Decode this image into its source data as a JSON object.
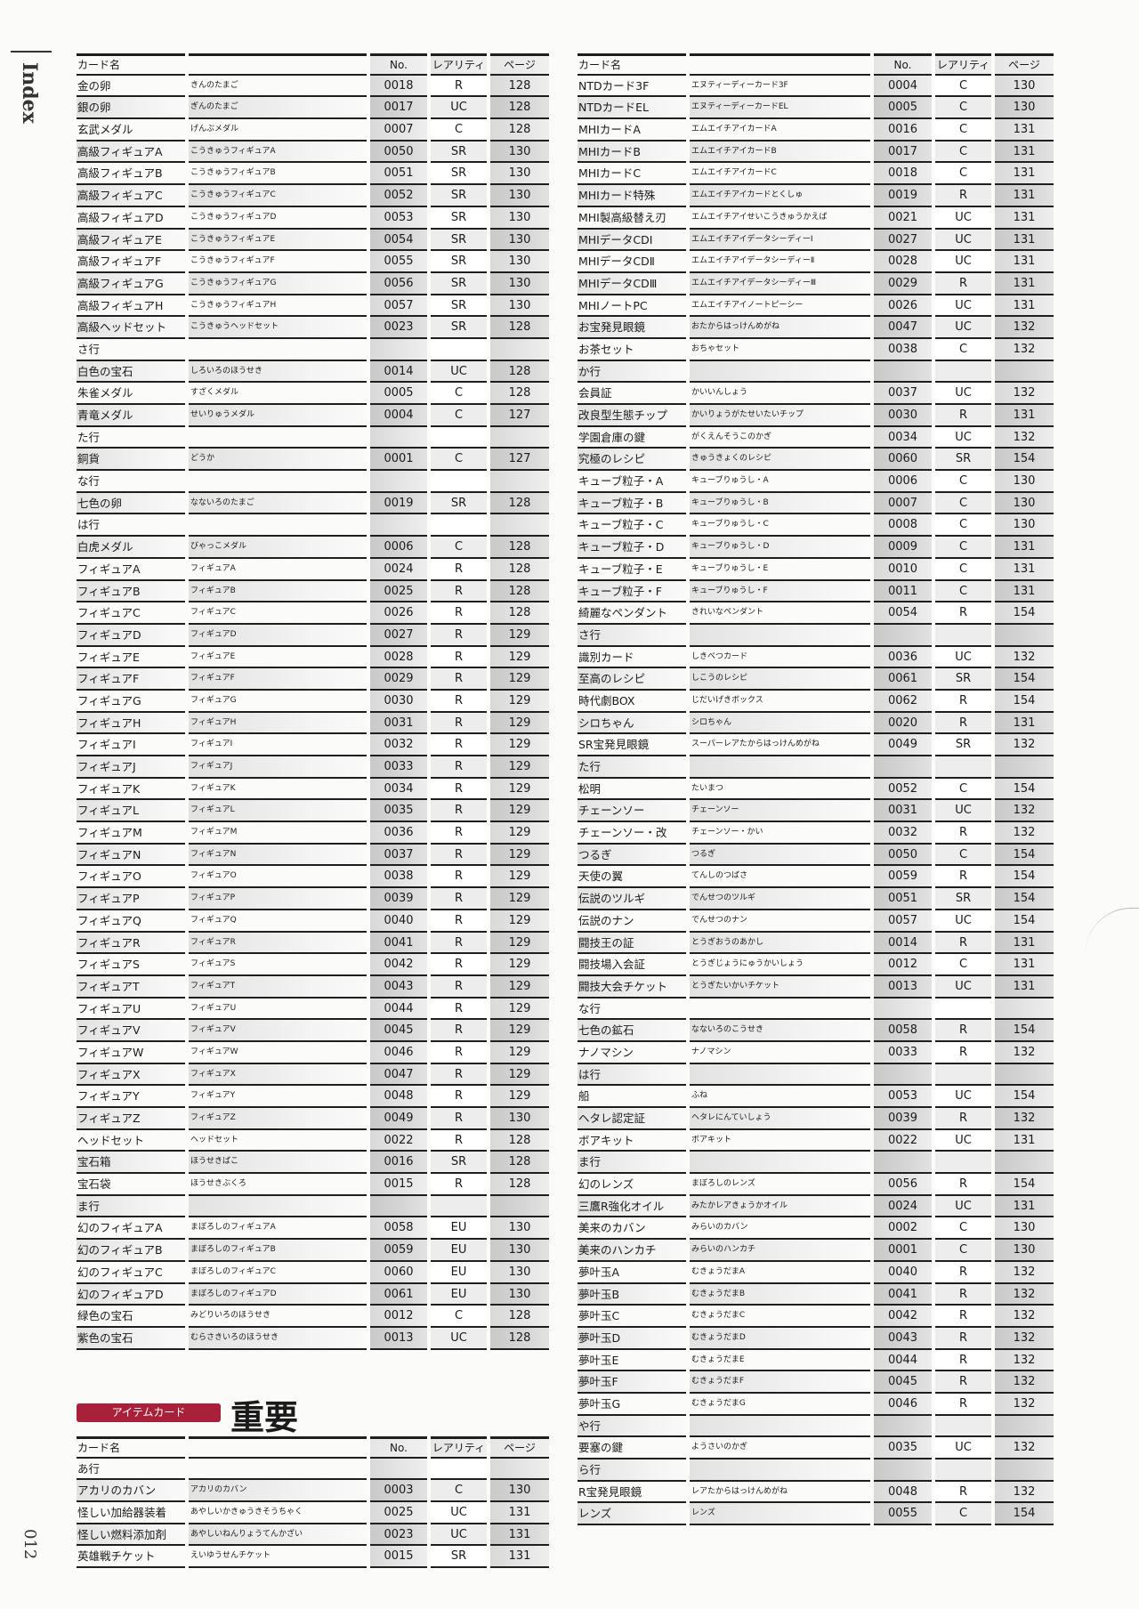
{
  "side": {
    "index_label": "Index",
    "page_number": "012"
  },
  "headers": {
    "name": "カード名",
    "no": "No.",
    "rarity": "レアリティ",
    "page": "ページ"
  },
  "section_badge": "アイテムカード",
  "section_title": "重要",
  "left_table": [
    [
      "金の卵",
      "きんのたまご",
      "0018",
      "R",
      "128"
    ],
    [
      "銀の卵",
      "ぎんのたまご",
      "0017",
      "UC",
      "128"
    ],
    [
      "玄武メダル",
      "げんぶメダル",
      "0007",
      "C",
      "128"
    ],
    [
      "高級フィギュアA",
      "こうきゅうフィギュアA",
      "0050",
      "SR",
      "130"
    ],
    [
      "高級フィギュアB",
      "こうきゅうフィギュアB",
      "0051",
      "SR",
      "130"
    ],
    [
      "高級フィギュアC",
      "こうきゅうフィギュアC",
      "0052",
      "SR",
      "130"
    ],
    [
      "高級フィギュアD",
      "こうきゅうフィギュアD",
      "0053",
      "SR",
      "130"
    ],
    [
      "高級フィギュアE",
      "こうきゅうフィギュアE",
      "0054",
      "SR",
      "130"
    ],
    [
      "高級フィギュアF",
      "こうきゅうフィギュアF",
      "0055",
      "SR",
      "130"
    ],
    [
      "高級フィギュアG",
      "こうきゅうフィギュアG",
      "0056",
      "SR",
      "130"
    ],
    [
      "高級フィギュアH",
      "こうきゅうフィギュアH",
      "0057",
      "SR",
      "130"
    ],
    [
      "高級ヘッドセット",
      "こうきゅうヘッドセット",
      "0023",
      "SR",
      "128"
    ],
    [
      "さ行"
    ],
    [
      "白色の宝石",
      "しろいろのほうせき",
      "0014",
      "UC",
      "128"
    ],
    [
      "朱雀メダル",
      "すざくメダル",
      "0005",
      "C",
      "128"
    ],
    [
      "青竜メダル",
      "せいりゅうメダル",
      "0004",
      "C",
      "127"
    ],
    [
      "た行"
    ],
    [
      "銅貨",
      "どうか",
      "0001",
      "C",
      "127"
    ],
    [
      "な行"
    ],
    [
      "七色の卵",
      "なないろのたまご",
      "0019",
      "SR",
      "128"
    ],
    [
      "は行"
    ],
    [
      "白虎メダル",
      "びゃっこメダル",
      "0006",
      "C",
      "128"
    ],
    [
      "フィギュアA",
      "フィギュアA",
      "0024",
      "R",
      "128"
    ],
    [
      "フィギュアB",
      "フィギュアB",
      "0025",
      "R",
      "128"
    ],
    [
      "フィギュアC",
      "フィギュアC",
      "0026",
      "R",
      "128"
    ],
    [
      "フィギュアD",
      "フィギュアD",
      "0027",
      "R",
      "129"
    ],
    [
      "フィギュアE",
      "フィギュアE",
      "0028",
      "R",
      "129"
    ],
    [
      "フィギュアF",
      "フィギュアF",
      "0029",
      "R",
      "129"
    ],
    [
      "フィギュアG",
      "フィギュアG",
      "0030",
      "R",
      "129"
    ],
    [
      "フィギュアH",
      "フィギュアH",
      "0031",
      "R",
      "129"
    ],
    [
      "フィギュアI",
      "フィギュアI",
      "0032",
      "R",
      "129"
    ],
    [
      "フィギュアJ",
      "フィギュアJ",
      "0033",
      "R",
      "129"
    ],
    [
      "フィギュアK",
      "フィギュアK",
      "0034",
      "R",
      "129"
    ],
    [
      "フィギュアL",
      "フィギュアL",
      "0035",
      "R",
      "129"
    ],
    [
      "フィギュアM",
      "フィギュアM",
      "0036",
      "R",
      "129"
    ],
    [
      "フィギュアN",
      "フィギュアN",
      "0037",
      "R",
      "129"
    ],
    [
      "フィギュアO",
      "フィギュアO",
      "0038",
      "R",
      "129"
    ],
    [
      "フィギュアP",
      "フィギュアP",
      "0039",
      "R",
      "129"
    ],
    [
      "フィギュアQ",
      "フィギュアQ",
      "0040",
      "R",
      "129"
    ],
    [
      "フィギュアR",
      "フィギュアR",
      "0041",
      "R",
      "129"
    ],
    [
      "フィギュアS",
      "フィギュアS",
      "0042",
      "R",
      "129"
    ],
    [
      "フィギュアT",
      "フィギュアT",
      "0043",
      "R",
      "129"
    ],
    [
      "フィギュアU",
      "フィギュアU",
      "0044",
      "R",
      "129"
    ],
    [
      "フィギュアV",
      "フィギュアV",
      "0045",
      "R",
      "129"
    ],
    [
      "フィギュアW",
      "フィギュアW",
      "0046",
      "R",
      "129"
    ],
    [
      "フィギュアX",
      "フィギュアX",
      "0047",
      "R",
      "129"
    ],
    [
      "フィギュアY",
      "フィギュアY",
      "0048",
      "R",
      "129"
    ],
    [
      "フィギュアZ",
      "フィギュアZ",
      "0049",
      "R",
      "130"
    ],
    [
      "ヘッドセット",
      "ヘッドセット",
      "0022",
      "R",
      "128"
    ],
    [
      "宝石箱",
      "ほうせきばこ",
      "0016",
      "SR",
      "128"
    ],
    [
      "宝石袋",
      "ほうせきぶくろ",
      "0015",
      "R",
      "128"
    ],
    [
      "ま行"
    ],
    [
      "幻のフィギュアA",
      "まぼろしのフィギュアA",
      "0058",
      "EU",
      "130"
    ],
    [
      "幻のフィギュアB",
      "まぼろしのフィギュアB",
      "0059",
      "EU",
      "130"
    ],
    [
      "幻のフィギュアC",
      "まぼろしのフィギュアC",
      "0060",
      "EU",
      "130"
    ],
    [
      "幻のフィギュアD",
      "まぼろしのフィギュアD",
      "0061",
      "EU",
      "130"
    ],
    [
      "緑色の宝石",
      "みどりいろのほうせき",
      "0012",
      "C",
      "128"
    ],
    [
      "紫色の宝石",
      "むらさきいろのほうせき",
      "0013",
      "UC",
      "128"
    ]
  ],
  "right_table": [
    [
      "NTDカード3F",
      "エヌティーディーカード3F",
      "0004",
      "C",
      "130"
    ],
    [
      "NTDカードEL",
      "エヌティーディーカードEL",
      "0005",
      "C",
      "130"
    ],
    [
      "MHIカードA",
      "エムエイチアイカードA",
      "0016",
      "C",
      "131"
    ],
    [
      "MHIカードB",
      "エムエイチアイカードB",
      "0017",
      "C",
      "131"
    ],
    [
      "MHIカードC",
      "エムエイチアイカードC",
      "0018",
      "C",
      "131"
    ],
    [
      "MHIカード特殊",
      "エムエイチアイカードとくしゅ",
      "0019",
      "R",
      "131"
    ],
    [
      "MHI製高級替え刃",
      "エムエイチアイせいこうきゅうかえば",
      "0021",
      "UC",
      "131"
    ],
    [
      "MHIデータCDⅠ",
      "エムエイチアイデータシーディーⅠ",
      "0027",
      "UC",
      "131"
    ],
    [
      "MHIデータCDⅡ",
      "エムエイチアイデータシーディーⅡ",
      "0028",
      "UC",
      "131"
    ],
    [
      "MHIデータCDⅢ",
      "エムエイチアイデータシーディーⅢ",
      "0029",
      "R",
      "131"
    ],
    [
      "MHIノートPC",
      "エムエイチアイノートピーシー",
      "0026",
      "UC",
      "131"
    ],
    [
      "お宝発見眼鏡",
      "おたからはっけんめがね",
      "0047",
      "UC",
      "132"
    ],
    [
      "お茶セット",
      "おちゃセット",
      "0038",
      "C",
      "132"
    ],
    [
      "か行"
    ],
    [
      "会員証",
      "かいいんしょう",
      "0037",
      "UC",
      "132"
    ],
    [
      "改良型生態チップ",
      "かいりょうがたせいたいチップ",
      "0030",
      "R",
      "131"
    ],
    [
      "学園倉庫の鍵",
      "がくえんそうこのかぎ",
      "0034",
      "UC",
      "132"
    ],
    [
      "究極のレシピ",
      "きゅうきょくのレシピ",
      "0060",
      "SR",
      "154"
    ],
    [
      "キューブ粒子・A",
      "キューブりゅうし・A",
      "0006",
      "C",
      "130"
    ],
    [
      "キューブ粒子・B",
      "キューブりゅうし・B",
      "0007",
      "C",
      "130"
    ],
    [
      "キューブ粒子・C",
      "キューブりゅうし・C",
      "0008",
      "C",
      "130"
    ],
    [
      "キューブ粒子・D",
      "キューブりゅうし・D",
      "0009",
      "C",
      "131"
    ],
    [
      "キューブ粒子・E",
      "キューブりゅうし・E",
      "0010",
      "C",
      "131"
    ],
    [
      "キューブ粒子・F",
      "キューブりゅうし・F",
      "0011",
      "C",
      "131"
    ],
    [
      "綺麗なペンダント",
      "きれいなペンダント",
      "0054",
      "R",
      "154"
    ],
    [
      "さ行"
    ],
    [
      "識別カード",
      "しきべつカード",
      "0036",
      "UC",
      "132"
    ],
    [
      "至高のレシピ",
      "しこうのレシピ",
      "0061",
      "SR",
      "154"
    ],
    [
      "時代劇BOX",
      "じだいげきボックス",
      "0062",
      "R",
      "154"
    ],
    [
      "シロちゃん",
      "シロちゃん",
      "0020",
      "R",
      "131"
    ],
    [
      "SR宝発見眼鏡",
      "スーパーレアたからはっけんめがね",
      "0049",
      "SR",
      "132"
    ],
    [
      "た行"
    ],
    [
      "松明",
      "たいまつ",
      "0052",
      "C",
      "154"
    ],
    [
      "チェーンソー",
      "チェーンソー",
      "0031",
      "UC",
      "132"
    ],
    [
      "チェーンソー・改",
      "チェーンソー・かい",
      "0032",
      "R",
      "132"
    ],
    [
      "つるぎ",
      "つるぎ",
      "0050",
      "C",
      "154"
    ],
    [
      "天使の翼",
      "てんしのつばさ",
      "0059",
      "R",
      "154"
    ],
    [
      "伝説のツルギ",
      "でんせつのツルギ",
      "0051",
      "SR",
      "154"
    ],
    [
      "伝説のナン",
      "でんせつのナン",
      "0057",
      "UC",
      "154"
    ],
    [
      "闘技王の証",
      "とうぎおうのあかし",
      "0014",
      "R",
      "131"
    ],
    [
      "闘技場入会証",
      "とうぎじょうにゅうかいしょう",
      "0012",
      "C",
      "131"
    ],
    [
      "闘技大会チケット",
      "とうぎたいかいチケット",
      "0013",
      "UC",
      "131"
    ],
    [
      "な行"
    ],
    [
      "七色の鉱石",
      "なないろのこうせき",
      "0058",
      "R",
      "154"
    ],
    [
      "ナノマシン",
      "ナノマシン",
      "0033",
      "R",
      "132"
    ],
    [
      "は行"
    ],
    [
      "船",
      "ふね",
      "0053",
      "UC",
      "154"
    ],
    [
      "ヘタレ認定証",
      "ヘタレにんていしょう",
      "0039",
      "R",
      "132"
    ],
    [
      "ボアキット",
      "ボアキット",
      "0022",
      "UC",
      "131"
    ],
    [
      "ま行"
    ],
    [
      "幻のレンズ",
      "まぼろしのレンズ",
      "0056",
      "R",
      "154"
    ],
    [
      "三鷹R強化オイル",
      "みたかレアきょうかオイル",
      "0024",
      "UC",
      "131"
    ],
    [
      "美来のカバン",
      "みらいのカバン",
      "0002",
      "C",
      "130"
    ],
    [
      "美来のハンカチ",
      "みらいのハンカチ",
      "0001",
      "C",
      "130"
    ],
    [
      "夢叶玉A",
      "むきょうだまA",
      "0040",
      "R",
      "132"
    ],
    [
      "夢叶玉B",
      "むきょうだまB",
      "0041",
      "R",
      "132"
    ],
    [
      "夢叶玉C",
      "むきょうだまC",
      "0042",
      "R",
      "132"
    ],
    [
      "夢叶玉D",
      "むきょうだまD",
      "0043",
      "R",
      "132"
    ],
    [
      "夢叶玉E",
      "むきょうだまE",
      "0044",
      "R",
      "132"
    ],
    [
      "夢叶玉F",
      "むきょうだまF",
      "0045",
      "R",
      "132"
    ],
    [
      "夢叶玉G",
      "むきょうだまG",
      "0046",
      "R",
      "132"
    ],
    [
      "や行"
    ],
    [
      "要塞の鍵",
      "ようさいのかぎ",
      "0035",
      "UC",
      "132"
    ],
    [
      "ら行"
    ],
    [
      "R宝発見眼鏡",
      "レアたからはっけんめがね",
      "0048",
      "R",
      "132"
    ],
    [
      "レンズ",
      "レンズ",
      "0055",
      "C",
      "154"
    ]
  ],
  "bottom_table": [
    [
      "あ行"
    ],
    [
      "アカリのカバン",
      "アカリのカバン",
      "0003",
      "C",
      "130"
    ],
    [
      "怪しい加給器装着",
      "あやしいかきゅうきそうちゃく",
      "0025",
      "UC",
      "131"
    ],
    [
      "怪しい燃料添加剤",
      "あやしいねんりょうてんかざい",
      "0023",
      "UC",
      "131"
    ],
    [
      "英雄戦チケット",
      "えいゆうせんチケット",
      "0015",
      "SR",
      "131"
    ]
  ],
  "colors": {
    "badge": "#a8203a",
    "rule": "#1e1e1e",
    "shade": "#d9d9d9"
  }
}
